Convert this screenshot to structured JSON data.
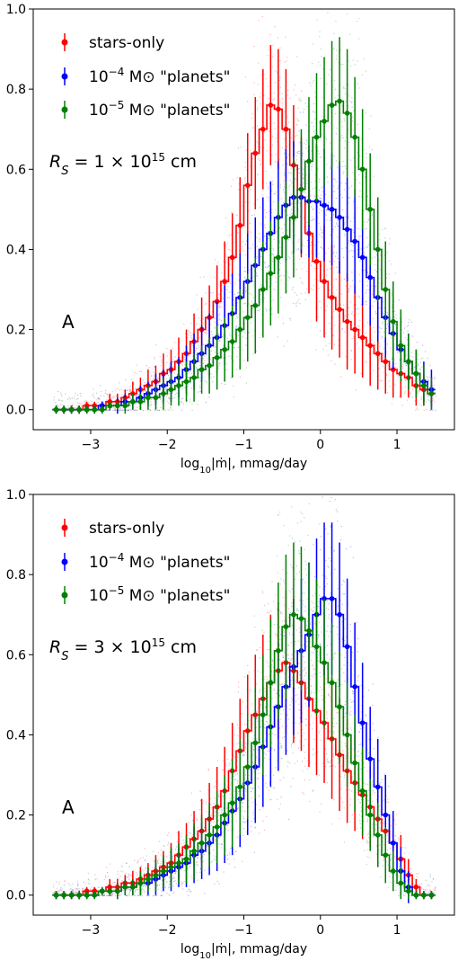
{
  "chart_data": [
    {
      "type": "line",
      "panel_label": "A",
      "annotation": "R_S = 1 × 10^15 cm",
      "xlabel": "log10|ṁ|, mmag/day",
      "ylabel": "",
      "xlim": [
        -3.75,
        1.75
      ],
      "ylim": [
        -0.05,
        1.0
      ],
      "xticks": [
        -3,
        -2,
        -1,
        0,
        1
      ],
      "yticks": [
        0.0,
        0.2,
        0.4,
        0.6,
        0.8,
        1.0
      ],
      "x": [
        -3.45,
        -3.35,
        -3.25,
        -3.15,
        -3.05,
        -2.95,
        -2.85,
        -2.75,
        -2.65,
        -2.55,
        -2.45,
        -2.35,
        -2.25,
        -2.15,
        -2.05,
        -1.95,
        -1.85,
        -1.75,
        -1.65,
        -1.55,
        -1.45,
        -1.35,
        -1.25,
        -1.15,
        -1.05,
        -0.95,
        -0.85,
        -0.75,
        -0.65,
        -0.55,
        -0.45,
        -0.35,
        -0.25,
        -0.15,
        -0.05,
        0.05,
        0.15,
        0.25,
        0.35,
        0.45,
        0.55,
        0.65,
        0.75,
        0.85,
        0.95,
        1.05,
        1.15,
        1.25,
        1.35,
        1.45
      ],
      "series": [
        {
          "name": "stars-only",
          "color": "#ff0000",
          "values": [
            0.0,
            0.0,
            0.0,
            0.0,
            0.01,
            0.01,
            0.01,
            0.02,
            0.02,
            0.03,
            0.04,
            0.05,
            0.06,
            0.07,
            0.09,
            0.1,
            0.12,
            0.14,
            0.17,
            0.2,
            0.23,
            0.27,
            0.32,
            0.38,
            0.46,
            0.56,
            0.64,
            0.7,
            0.76,
            0.75,
            0.7,
            0.61,
            0.53,
            0.44,
            0.37,
            0.32,
            0.28,
            0.25,
            0.22,
            0.2,
            0.18,
            0.16,
            0.14,
            0.12,
            0.1,
            0.09,
            0.08,
            0.06,
            0.05,
            0.04
          ],
          "errors": [
            0.01,
            0.01,
            0.01,
            0.01,
            0.01,
            0.01,
            0.01,
            0.02,
            0.02,
            0.02,
            0.03,
            0.03,
            0.04,
            0.04,
            0.05,
            0.05,
            0.06,
            0.06,
            0.07,
            0.08,
            0.08,
            0.09,
            0.1,
            0.11,
            0.12,
            0.13,
            0.14,
            0.15,
            0.15,
            0.15,
            0.15,
            0.15,
            0.15,
            0.15,
            0.15,
            0.14,
            0.13,
            0.12,
            0.12,
            0.11,
            0.1,
            0.1,
            0.09,
            0.08,
            0.07,
            0.06,
            0.05,
            0.05,
            0.04,
            0.03
          ]
        },
        {
          "name": "10^-4 M☉ \"planets\"",
          "color": "#0000ff",
          "values": [
            0.0,
            0.0,
            0.0,
            0.0,
            0.0,
            0.0,
            0.01,
            0.01,
            0.01,
            0.02,
            0.02,
            0.03,
            0.04,
            0.05,
            0.06,
            0.07,
            0.08,
            0.1,
            0.12,
            0.14,
            0.16,
            0.18,
            0.21,
            0.24,
            0.28,
            0.32,
            0.36,
            0.4,
            0.44,
            0.48,
            0.51,
            0.53,
            0.53,
            0.52,
            0.52,
            0.51,
            0.5,
            0.48,
            0.45,
            0.42,
            0.38,
            0.33,
            0.28,
            0.23,
            0.19,
            0.15,
            0.12,
            0.09,
            0.07,
            0.05
          ],
          "errors": [
            0.01,
            0.01,
            0.01,
            0.01,
            0.01,
            0.01,
            0.01,
            0.01,
            0.02,
            0.02,
            0.02,
            0.03,
            0.03,
            0.04,
            0.04,
            0.05,
            0.05,
            0.06,
            0.07,
            0.07,
            0.08,
            0.09,
            0.1,
            0.1,
            0.11,
            0.12,
            0.12,
            0.13,
            0.13,
            0.14,
            0.14,
            0.14,
            0.14,
            0.14,
            0.14,
            0.14,
            0.14,
            0.14,
            0.13,
            0.13,
            0.12,
            0.12,
            0.11,
            0.1,
            0.09,
            0.08,
            0.07,
            0.06,
            0.05,
            0.05
          ]
        },
        {
          "name": "10^-5 M☉ \"planets\"",
          "color": "#008000",
          "values": [
            0.0,
            0.0,
            0.0,
            0.0,
            0.0,
            0.0,
            0.0,
            0.01,
            0.01,
            0.01,
            0.02,
            0.02,
            0.03,
            0.03,
            0.04,
            0.05,
            0.06,
            0.07,
            0.08,
            0.1,
            0.11,
            0.13,
            0.15,
            0.17,
            0.2,
            0.23,
            0.26,
            0.3,
            0.34,
            0.38,
            0.43,
            0.48,
            0.55,
            0.62,
            0.68,
            0.72,
            0.76,
            0.77,
            0.74,
            0.68,
            0.6,
            0.5,
            0.4,
            0.3,
            0.22,
            0.16,
            0.12,
            0.09,
            0.06,
            0.04
          ],
          "errors": [
            0.01,
            0.01,
            0.01,
            0.01,
            0.01,
            0.01,
            0.01,
            0.01,
            0.01,
            0.02,
            0.02,
            0.02,
            0.03,
            0.03,
            0.04,
            0.04,
            0.05,
            0.05,
            0.06,
            0.06,
            0.07,
            0.08,
            0.08,
            0.09,
            0.1,
            0.11,
            0.12,
            0.12,
            0.13,
            0.14,
            0.14,
            0.15,
            0.15,
            0.16,
            0.16,
            0.16,
            0.16,
            0.16,
            0.16,
            0.15,
            0.15,
            0.14,
            0.13,
            0.12,
            0.1,
            0.09,
            0.07,
            0.06,
            0.05,
            0.04
          ]
        }
      ]
    },
    {
      "type": "line",
      "panel_label": "A",
      "annotation": "R_S = 3 × 10^15 cm",
      "xlabel": "log10|ṁ|, mmag/day",
      "ylabel": "",
      "xlim": [
        -3.75,
        1.75
      ],
      "ylim": [
        -0.05,
        1.0
      ],
      "xticks": [
        -3,
        -2,
        -1,
        0,
        1
      ],
      "yticks": [
        0.0,
        0.2,
        0.4,
        0.6,
        0.8,
        1.0
      ],
      "x": [
        -3.45,
        -3.35,
        -3.25,
        -3.15,
        -3.05,
        -2.95,
        -2.85,
        -2.75,
        -2.65,
        -2.55,
        -2.45,
        -2.35,
        -2.25,
        -2.15,
        -2.05,
        -1.95,
        -1.85,
        -1.75,
        -1.65,
        -1.55,
        -1.45,
        -1.35,
        -1.25,
        -1.15,
        -1.05,
        -0.95,
        -0.85,
        -0.75,
        -0.65,
        -0.55,
        -0.45,
        -0.35,
        -0.25,
        -0.15,
        -0.05,
        0.05,
        0.15,
        0.25,
        0.35,
        0.45,
        0.55,
        0.65,
        0.75,
        0.85,
        0.95,
        1.05,
        1.15,
        1.25,
        1.35,
        1.45
      ],
      "series": [
        {
          "name": "stars-only",
          "color": "#ff0000",
          "values": [
            0.0,
            0.0,
            0.0,
            0.0,
            0.01,
            0.01,
            0.01,
            0.02,
            0.02,
            0.03,
            0.03,
            0.04,
            0.05,
            0.06,
            0.07,
            0.08,
            0.1,
            0.12,
            0.14,
            0.16,
            0.19,
            0.22,
            0.26,
            0.31,
            0.36,
            0.41,
            0.45,
            0.49,
            0.53,
            0.56,
            0.58,
            0.56,
            0.53,
            0.49,
            0.46,
            0.43,
            0.39,
            0.35,
            0.31,
            0.28,
            0.25,
            0.22,
            0.19,
            0.16,
            0.13,
            0.09,
            0.05,
            0.02,
            0.0,
            0.0
          ],
          "errors": [
            0.01,
            0.01,
            0.01,
            0.01,
            0.01,
            0.01,
            0.01,
            0.02,
            0.02,
            0.02,
            0.03,
            0.03,
            0.03,
            0.04,
            0.04,
            0.05,
            0.06,
            0.06,
            0.07,
            0.08,
            0.09,
            0.1,
            0.11,
            0.12,
            0.13,
            0.14,
            0.15,
            0.16,
            0.17,
            0.17,
            0.18,
            0.18,
            0.17,
            0.17,
            0.16,
            0.15,
            0.15,
            0.14,
            0.13,
            0.12,
            0.11,
            0.1,
            0.09,
            0.08,
            0.07,
            0.06,
            0.04,
            0.02,
            0.01,
            0.01
          ]
        },
        {
          "name": "10^-4 M☉ \"planets\"",
          "color": "#0000ff",
          "values": [
            0.0,
            0.0,
            0.0,
            0.0,
            0.0,
            0.0,
            0.01,
            0.01,
            0.01,
            0.02,
            0.02,
            0.03,
            0.03,
            0.04,
            0.05,
            0.06,
            0.07,
            0.08,
            0.1,
            0.11,
            0.13,
            0.15,
            0.18,
            0.21,
            0.24,
            0.28,
            0.32,
            0.37,
            0.42,
            0.47,
            0.52,
            0.57,
            0.61,
            0.65,
            0.7,
            0.74,
            0.74,
            0.7,
            0.62,
            0.52,
            0.43,
            0.34,
            0.27,
            0.2,
            0.13,
            0.06,
            0.02,
            0.0,
            0.0,
            0.0
          ],
          "errors": [
            0.01,
            0.01,
            0.01,
            0.01,
            0.01,
            0.01,
            0.01,
            0.01,
            0.02,
            0.02,
            0.02,
            0.03,
            0.03,
            0.04,
            0.04,
            0.05,
            0.05,
            0.06,
            0.07,
            0.07,
            0.08,
            0.09,
            0.1,
            0.11,
            0.12,
            0.13,
            0.14,
            0.15,
            0.15,
            0.16,
            0.17,
            0.17,
            0.18,
            0.18,
            0.19,
            0.19,
            0.19,
            0.18,
            0.17,
            0.16,
            0.15,
            0.13,
            0.12,
            0.1,
            0.08,
            0.06,
            0.04,
            0.01,
            0.01,
            0.01
          ]
        },
        {
          "name": "10^-5 M☉ \"planets\"",
          "color": "#008000",
          "values": [
            0.0,
            0.0,
            0.0,
            0.0,
            0.0,
            0.0,
            0.01,
            0.01,
            0.01,
            0.02,
            0.02,
            0.03,
            0.04,
            0.05,
            0.06,
            0.07,
            0.08,
            0.09,
            0.11,
            0.13,
            0.15,
            0.17,
            0.2,
            0.23,
            0.27,
            0.32,
            0.38,
            0.45,
            0.53,
            0.61,
            0.67,
            0.7,
            0.69,
            0.66,
            0.62,
            0.58,
            0.53,
            0.47,
            0.4,
            0.33,
            0.26,
            0.2,
            0.15,
            0.1,
            0.06,
            0.03,
            0.01,
            0.0,
            0.0,
            0.0
          ],
          "errors": [
            0.01,
            0.01,
            0.01,
            0.01,
            0.01,
            0.01,
            0.01,
            0.01,
            0.02,
            0.02,
            0.02,
            0.03,
            0.03,
            0.04,
            0.04,
            0.05,
            0.05,
            0.06,
            0.07,
            0.07,
            0.08,
            0.09,
            0.1,
            0.11,
            0.12,
            0.13,
            0.14,
            0.15,
            0.16,
            0.17,
            0.18,
            0.18,
            0.18,
            0.17,
            0.17,
            0.16,
            0.15,
            0.14,
            0.13,
            0.12,
            0.11,
            0.09,
            0.08,
            0.07,
            0.05,
            0.04,
            0.02,
            0.01,
            0.01,
            0.01
          ]
        }
      ]
    }
  ]
}
